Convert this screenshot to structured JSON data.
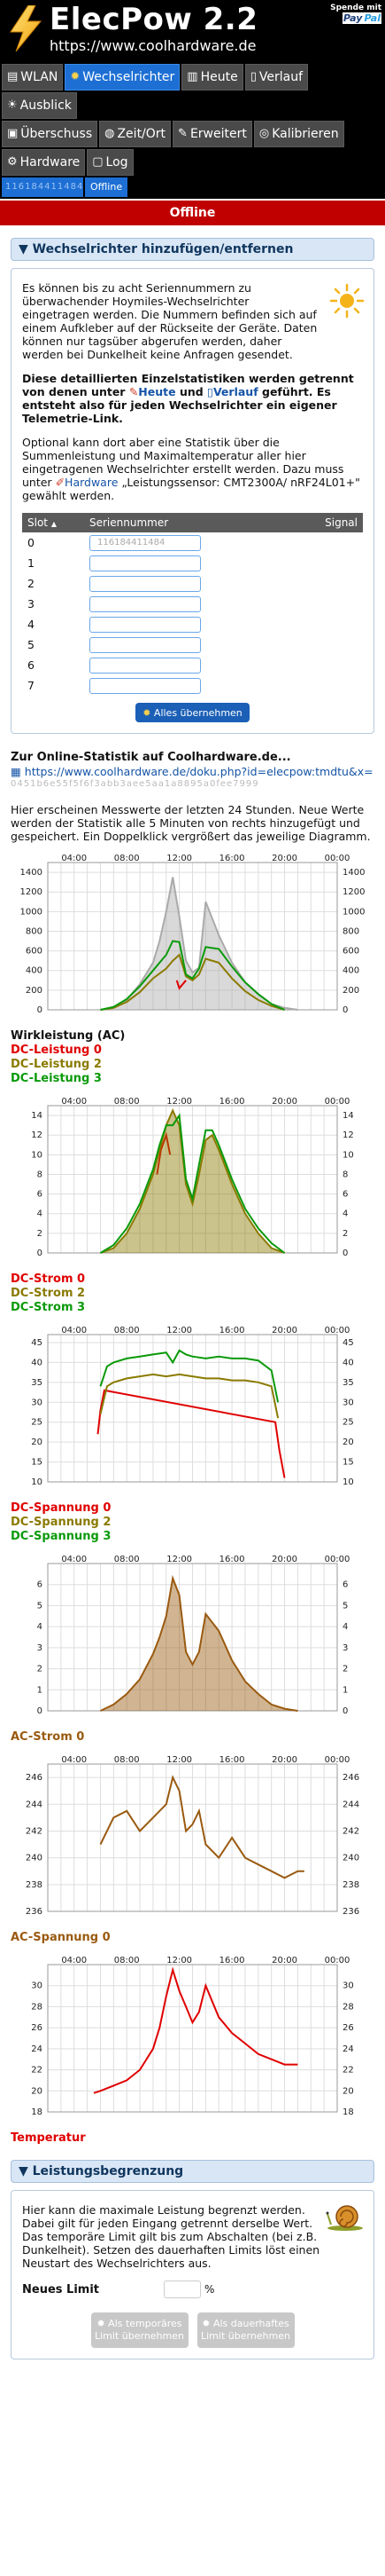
{
  "header": {
    "title": "ElecPow 2.2",
    "url": "https://www.coolhardware.de",
    "donate_label": "Spende mit",
    "paypal_1": "Pay",
    "paypal_2": "Pal"
  },
  "nav": {
    "row1": [
      {
        "label": "WLAN",
        "icon": "wlan-icon",
        "active": false
      },
      {
        "label": "Wechselrichter",
        "icon": "sun-icon",
        "active": true
      },
      {
        "label": "Heute",
        "icon": "chart-icon",
        "active": false
      },
      {
        "label": "Verlauf",
        "icon": "history-icon",
        "active": false
      },
      {
        "label": "Ausblick",
        "icon": "forecast-icon",
        "active": false
      }
    ],
    "row2": [
      {
        "label": "Überschuss",
        "icon": "surplus-icon"
      },
      {
        "label": "Zeit/Ort",
        "icon": "globe-icon"
      },
      {
        "label": "Erweitert",
        "icon": "wrench-icon"
      },
      {
        "label": "Kalibrieren",
        "icon": "target-icon"
      }
    ],
    "row3": [
      {
        "label": "Hardware",
        "icon": "hardware-icon"
      },
      {
        "label": "Log",
        "icon": "log-icon"
      }
    ],
    "inverter_serial": "116184411484",
    "inverter_status": "Offline",
    "offline_banner": "Offline"
  },
  "section_inverter": {
    "title": "▼ Wechselrichter hinzufügen/entfernen",
    "p1": "Es können bis zu acht Seriennummern zu überwachender Hoymiles-Wechselrichter eingetragen werden. Die Nummern befinden sich auf einem Aufkleber auf der Rückseite der Geräte. Daten können nur tagsüber abgerufen werden, daher werden bei Dunkelheit keine Anfragen gesendet.",
    "p2_a": "Diese detaillierten Einzelstatistiken werden getrennt von denen unter ",
    "p2_heute": "Heute",
    "p2_b": " und ",
    "p2_verlauf": "Verlauf",
    "p2_c": " geführt. Es entsteht also für jeden Wechselrichter ein eigener Telemetrie-Link.",
    "p3_a": "Optional kann dort aber eine Statistik über die Summenleistung und Maximaltemperatur aller hier eingetragenen Wechselrichter erstellt werden. Dazu muss unter ",
    "p3_hardware": "Hardware",
    "p3_b": " „Leistungssensor: CMT2300A/ nRF24L01+\" gewählt werden.",
    "table_headers": {
      "slot": "Slot",
      "sort": "▲",
      "serial": "Seriennummer",
      "signal": "Signal"
    },
    "slots": [
      "0",
      "1",
      "2",
      "3",
      "4",
      "5",
      "6",
      "7"
    ],
    "serial_0": "116184411484",
    "apply_label": "Alles übernehmen"
  },
  "online": {
    "title": "Zur Online-Statistik auf Coolhardware.de...",
    "link": "https://www.coolhardware.de/doku.php?id=elecpow:tmdtu&x=",
    "id_text": "0451b6e55f5f6f3abb3aee5aa1a8895a0fee7999"
  },
  "intro": "Hier erscheinen Messwerte der letzten 24 Stunden. Neue Werte werden der Statistik alle 5 Minuten von rechts hinzugefügt und gespeichert. Ein Doppelklick vergrößert das jeweilige Diagramm.",
  "colors": {
    "blue": "#1d6fd4",
    "offline_red": "#c00000",
    "series_red": "#e00000",
    "series_olive": "#8a7a00",
    "series_green": "#0a9a0a",
    "series_brown": "#9a5a10",
    "gray_fill": "#aaaaaa",
    "legend_black": "#111111"
  },
  "chart_data": [
    {
      "type": "area",
      "x_ticks": [
        "04:00",
        "08:00",
        "12:00",
        "16:00",
        "20:00",
        "00:00"
      ],
      "ylim": [
        0,
        1500
      ],
      "y_ticks": [
        0,
        200,
        400,
        600,
        800,
        1000,
        1200,
        1400
      ],
      "series": [
        {
          "name": "Wirkleistung (AC)",
          "color": "#aaaaaa",
          "fill": true,
          "x": [
            6,
            7,
            8,
            9,
            10,
            10.5,
            11,
            11.5,
            12,
            12.5,
            13,
            13.5,
            14,
            15,
            16,
            17,
            18,
            19,
            20,
            21
          ],
          "y": [
            0,
            20,
            100,
            260,
            480,
            700,
            1000,
            1350,
            950,
            500,
            380,
            430,
            1100,
            760,
            480,
            280,
            160,
            60,
            20,
            0
          ]
        },
        {
          "name": "DC-Leistung 0",
          "color": "#e00000",
          "x": [
            11.8,
            12,
            12.5
          ],
          "y": [
            300,
            220,
            300
          ]
        },
        {
          "name": "DC-Leistung 2",
          "color": "#8a7a00",
          "x": [
            6,
            7,
            8,
            9,
            10,
            11,
            11.5,
            12,
            12.5,
            13,
            13.5,
            14,
            15,
            16,
            17,
            18,
            19,
            20
          ],
          "y": [
            0,
            20,
            80,
            180,
            320,
            420,
            500,
            560,
            340,
            300,
            360,
            520,
            480,
            320,
            190,
            100,
            40,
            0
          ]
        },
        {
          "name": "DC-Leistung 3",
          "color": "#0a9a0a",
          "x": [
            6,
            7,
            8,
            9,
            10,
            11,
            11.5,
            12,
            12.5,
            13,
            13.5,
            14,
            15,
            16,
            17,
            18,
            19,
            20
          ],
          "y": [
            0,
            30,
            110,
            240,
            400,
            560,
            700,
            690,
            360,
            320,
            420,
            640,
            620,
            440,
            280,
            160,
            60,
            0
          ]
        }
      ],
      "legend": [
        "Wirkleistung (AC)",
        "DC-Leistung 0",
        "DC-Leistung 2",
        "DC-Leistung 3"
      ]
    },
    {
      "type": "area",
      "x_ticks": [
        "04:00",
        "08:00",
        "12:00",
        "16:00",
        "20:00",
        "00:00"
      ],
      "ylim": [
        0,
        15
      ],
      "y_ticks": [
        0,
        2,
        4,
        6,
        8,
        10,
        12,
        14
      ],
      "series": [
        {
          "name": "DC-Strom 0",
          "color": "#e00000",
          "x": [
            10.3,
            10.6,
            11,
            11.3
          ],
          "y": [
            8,
            10.5,
            12,
            10
          ]
        },
        {
          "name": "DC-Strom 2",
          "color": "#8a7a00",
          "fill": true,
          "x": [
            6,
            7,
            8,
            9,
            10,
            10.5,
            11,
            11.5,
            12,
            12.5,
            13,
            13.5,
            14,
            14.5,
            15,
            16,
            17,
            18,
            19,
            20
          ],
          "y": [
            0,
            0.5,
            2,
            4.5,
            8,
            10.5,
            13,
            14.5,
            13,
            7,
            5,
            8,
            11.5,
            12,
            10.5,
            7,
            4,
            2,
            0.5,
            0
          ]
        },
        {
          "name": "DC-Strom 3",
          "color": "#0a9a0a",
          "x": [
            6,
            7,
            8,
            9,
            10,
            10.5,
            11,
            11.5,
            12,
            12.5,
            13,
            13.5,
            14,
            14.5,
            15,
            16,
            17,
            18,
            19,
            20
          ],
          "y": [
            0,
            0.8,
            2.5,
            5,
            8.5,
            11,
            13,
            13,
            14,
            7.5,
            5.5,
            9,
            12.5,
            12.5,
            11,
            7.5,
            4.5,
            2.5,
            1,
            0
          ]
        }
      ],
      "legend": [
        "DC-Strom 0",
        "DC-Strom 2",
        "DC-Strom 3"
      ]
    },
    {
      "type": "line",
      "x_ticks": [
        "04:00",
        "08:00",
        "12:00",
        "16:00",
        "20:00",
        "00:00"
      ],
      "ylim": [
        10,
        47
      ],
      "y_ticks": [
        10,
        15,
        20,
        25,
        30,
        35,
        40,
        45
      ],
      "series": [
        {
          "name": "DC-Spannung 0",
          "color": "#e00000",
          "x": [
            5.8,
            6,
            6.3,
            19.3,
            19.6,
            20
          ],
          "y": [
            22,
            28,
            33,
            25,
            18,
            11
          ]
        },
        {
          "name": "DC-Spannung 2",
          "color": "#8a7a00",
          "x": [
            6,
            6.5,
            7,
            8,
            9,
            10,
            11,
            12,
            13,
            14,
            15,
            16,
            17,
            18,
            19,
            19.5
          ],
          "y": [
            27,
            34,
            35,
            36,
            36.5,
            37,
            36.5,
            37,
            36.5,
            36,
            36,
            35.5,
            35.5,
            35,
            34,
            26
          ]
        },
        {
          "name": "DC-Spannung 3",
          "color": "#0a9a0a",
          "x": [
            6,
            6.5,
            7,
            8,
            9,
            10,
            11,
            11.5,
            12,
            12.5,
            13,
            14,
            15,
            16,
            17,
            18,
            19,
            19.5
          ],
          "y": [
            34,
            39,
            40,
            41,
            41.5,
            42,
            42.5,
            40,
            43,
            42,
            41.5,
            41,
            41.5,
            41,
            41,
            40.5,
            38,
            30
          ]
        }
      ],
      "legend": [
        "DC-Spannung 0",
        "DC-Spannung 2",
        "DC-Spannung 3"
      ]
    },
    {
      "type": "area",
      "x_ticks": [
        "04:00",
        "08:00",
        "12:00",
        "16:00",
        "20:00",
        "00:00"
      ],
      "ylim": [
        0,
        7
      ],
      "y_ticks": [
        0,
        1,
        2,
        3,
        4,
        5,
        6
      ],
      "series": [
        {
          "name": "AC-Strom 0",
          "color": "#9a5a10",
          "fill": true,
          "x": [
            6,
            7,
            8,
            9,
            10,
            10.5,
            11,
            11.5,
            12,
            12.5,
            13,
            13.5,
            14,
            15,
            16,
            17,
            18,
            19,
            20,
            21
          ],
          "y": [
            0,
            0.3,
            0.8,
            1.5,
            2.7,
            3.5,
            4.5,
            6.3,
            5.5,
            2.8,
            2.2,
            2.8,
            4.6,
            3.8,
            2.4,
            1.4,
            0.8,
            0.3,
            0.1,
            0
          ]
        }
      ],
      "legend": [
        "AC-Strom 0"
      ]
    },
    {
      "type": "line",
      "x_ticks": [
        "04:00",
        "08:00",
        "12:00",
        "16:00",
        "20:00",
        "00:00"
      ],
      "ylim": [
        236,
        247
      ],
      "y_ticks": [
        236,
        238,
        240,
        242,
        244,
        246
      ],
      "series": [
        {
          "name": "AC-Spannung 0",
          "color": "#9a5a10",
          "x": [
            6,
            7,
            8,
            9,
            10,
            11,
            11.5,
            12,
            12.5,
            13,
            13.5,
            14,
            15,
            16,
            17,
            18,
            19,
            20,
            21,
            21.5
          ],
          "y": [
            241,
            243,
            243.5,
            242,
            243,
            244,
            246,
            245,
            242,
            242.5,
            243.5,
            241,
            240,
            241.5,
            240,
            239.5,
            239,
            238.5,
            239,
            239
          ]
        }
      ],
      "legend": [
        "AC-Spannung 0"
      ]
    },
    {
      "type": "line",
      "x_ticks": [
        "04:00",
        "08:00",
        "12:00",
        "16:00",
        "20:00",
        "00:00"
      ],
      "ylim": [
        18,
        32
      ],
      "y_ticks": [
        18,
        20,
        22,
        24,
        26,
        28,
        30
      ],
      "series": [
        {
          "name": "Temperatur",
          "color": "#e00000",
          "x": [
            5.5,
            6,
            7,
            8,
            9,
            10,
            10.5,
            11,
            11.5,
            12,
            12.5,
            13,
            13.5,
            14,
            15,
            16,
            17,
            18,
            19,
            20,
            21
          ],
          "y": [
            19.8,
            20,
            20.5,
            21,
            22,
            24,
            26,
            29,
            31.5,
            29.5,
            28,
            26.5,
            27.5,
            30,
            27,
            25.5,
            24.5,
            23.5,
            23,
            22.5,
            22.5
          ]
        }
      ],
      "legend": [
        "Temperatur"
      ]
    }
  ],
  "section_limit": {
    "title": "▼ Leistungsbegrenzung",
    "p1": "Hier kann die maximale Leistung begrenzt werden. Dabei gilt für jeden Eingang getrennt derselbe Wert.",
    "p2": "Das temporäre Limit gilt bis zum Abschalten (bei z.B. Dunkelheit). Setzen des dauerhaften Limits löst einen Neustart des Wechselrichters aus.",
    "new_limit_label": "Neues Limit",
    "unit": "%",
    "btn_temp": "Als temporäres Limit übernehmen",
    "btn_perm": "Als dauerhaftes Limit übernehmen"
  }
}
